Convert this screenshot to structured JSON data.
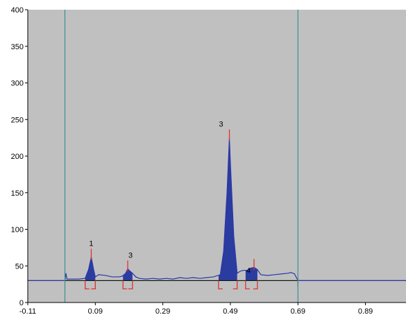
{
  "chart_data": {
    "type": "area",
    "title": "",
    "xlabel": "",
    "ylabel": "",
    "xlim": [
      -0.11,
      1.01
    ],
    "ylim": [
      0,
      400
    ],
    "x_ticks": [
      -0.11,
      0.09,
      0.29,
      0.49,
      0.69,
      0.89
    ],
    "x_tick_labels": [
      "-0.11",
      "0.09",
      "0.29",
      "0.49",
      "0.69",
      "0.89"
    ],
    "y_ticks": [
      0,
      50,
      100,
      150,
      200,
      250,
      300,
      350,
      400
    ],
    "y_tick_labels": [
      "0",
      "50",
      "100",
      "150",
      "200",
      "250",
      "300",
      "350",
      "400"
    ],
    "grid": false,
    "colors": {
      "plot_background": "#c0c0c0",
      "trace": "#2a36a8",
      "peak_fill": "#2a3ca0",
      "baseline": "#000000",
      "green_baseline": "#3a9a3a",
      "marker": "#e03030",
      "vertical_line": "#3a8f8f"
    },
    "vertical_lines": [
      0.0,
      0.69
    ],
    "baseline_y": 30,
    "peaks": [
      {
        "label": "1",
        "x": 0.078,
        "height": 62,
        "start": 0.06,
        "end": 0.09
      },
      {
        "label": "3",
        "x": 0.186,
        "height": 46,
        "start": 0.172,
        "end": 0.2
      },
      {
        "label": "3",
        "x": 0.487,
        "height": 225,
        "start": 0.455,
        "end": 0.51
      },
      {
        "label": "4",
        "x": 0.56,
        "height": 48,
        "start": 0.535,
        "end": 0.57
      }
    ],
    "series": [
      {
        "values": [
          [
            -0.11,
            30
          ],
          [
            0.0,
            30
          ],
          [
            0.003,
            40
          ],
          [
            0.006,
            32
          ],
          [
            0.02,
            32
          ],
          [
            0.04,
            32
          ],
          [
            0.06,
            33
          ],
          [
            0.07,
            45
          ],
          [
            0.078,
            62
          ],
          [
            0.085,
            45
          ],
          [
            0.09,
            35
          ],
          [
            0.1,
            38
          ],
          [
            0.12,
            37
          ],
          [
            0.14,
            35
          ],
          [
            0.16,
            35
          ],
          [
            0.17,
            36
          ],
          [
            0.18,
            40
          ],
          [
            0.186,
            46
          ],
          [
            0.19,
            44
          ],
          [
            0.2,
            40
          ],
          [
            0.21,
            35
          ],
          [
            0.22,
            33
          ],
          [
            0.24,
            32
          ],
          [
            0.26,
            33
          ],
          [
            0.28,
            32
          ],
          [
            0.3,
            33
          ],
          [
            0.32,
            32
          ],
          [
            0.34,
            34
          ],
          [
            0.36,
            33
          ],
          [
            0.38,
            34
          ],
          [
            0.4,
            33
          ],
          [
            0.42,
            34
          ],
          [
            0.44,
            35
          ],
          [
            0.46,
            38
          ],
          [
            0.47,
            70
          ],
          [
            0.48,
            150
          ],
          [
            0.487,
            225
          ],
          [
            0.49,
            190
          ],
          [
            0.5,
            90
          ],
          [
            0.51,
            40
          ],
          [
            0.52,
            43
          ],
          [
            0.53,
            44
          ],
          [
            0.54,
            44
          ],
          [
            0.55,
            47
          ],
          [
            0.56,
            48
          ],
          [
            0.57,
            45
          ],
          [
            0.58,
            38
          ],
          [
            0.6,
            37
          ],
          [
            0.62,
            38
          ],
          [
            0.64,
            39
          ],
          [
            0.66,
            40
          ],
          [
            0.67,
            41
          ],
          [
            0.68,
            39
          ],
          [
            0.69,
            30
          ],
          [
            1.01,
            30
          ]
        ]
      }
    ]
  }
}
